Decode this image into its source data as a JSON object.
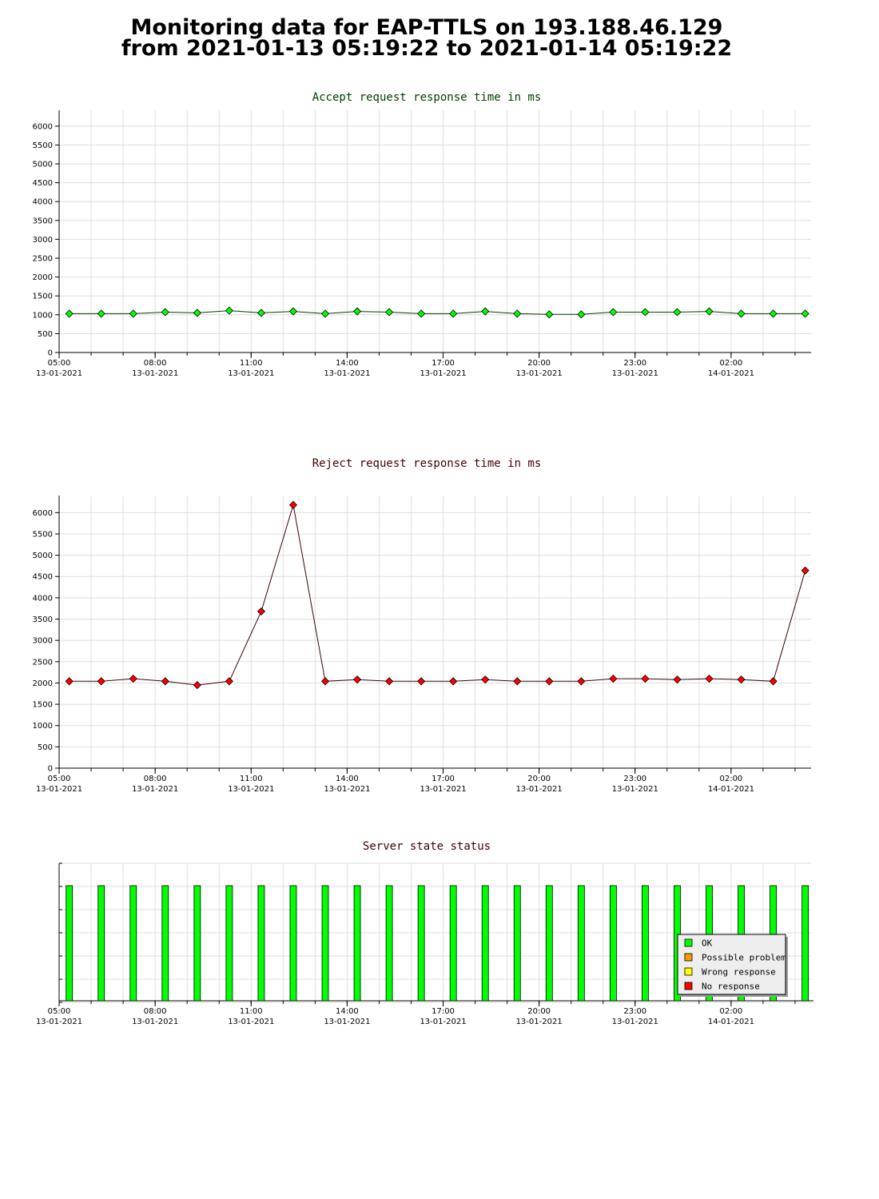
{
  "header": {
    "line1": "Monitoring data for EAP-TTLS on 193.188.46.129",
    "line2": "from 2021-01-13 05:19:22 to 2021-01-14 05:19:22"
  },
  "colors": {
    "accept_title": "#004000",
    "reject_title": "#400000",
    "status_title": "#400000",
    "accept_marker": "#00ff00",
    "reject_marker": "#ff0000",
    "grid": "#dddddd",
    "ok": "#00ff00",
    "possible_problem": "#ff9900",
    "wrong_response": "#ffff00",
    "no_response": "#ff0000"
  },
  "x_ticks": [
    {
      "time": "05:00",
      "date": "13-01-2021"
    },
    {
      "time": "08:00",
      "date": "13-01-2021"
    },
    {
      "time": "11:00",
      "date": "13-01-2021"
    },
    {
      "time": "14:00",
      "date": "13-01-2021"
    },
    {
      "time": "17:00",
      "date": "13-01-2021"
    },
    {
      "time": "20:00",
      "date": "13-01-2021"
    },
    {
      "time": "23:00",
      "date": "13-01-2021"
    },
    {
      "time": "02:00",
      "date": "14-01-2021"
    }
  ],
  "chart_data": [
    {
      "type": "line",
      "title": "Accept request response time in ms",
      "ylim": [
        0,
        6250
      ],
      "yticks": [
        0,
        500,
        1000,
        1500,
        2000,
        2500,
        3000,
        3500,
        4000,
        4500,
        5000,
        5500,
        6000
      ],
      "x_range": [
        "2021-01-13 05:00",
        "2021-01-14 04:30"
      ],
      "grid": true,
      "x": [
        "05:19",
        "06:19",
        "07:19",
        "08:19",
        "09:19",
        "10:19",
        "11:19",
        "12:19",
        "13:19",
        "14:19",
        "15:19",
        "16:19",
        "17:19",
        "18:19",
        "19:19",
        "20:19",
        "21:19",
        "22:19",
        "23:19",
        "00:19",
        "01:19",
        "02:19",
        "03:19",
        "04:19"
      ],
      "values": [
        1030,
        1030,
        1030,
        1070,
        1050,
        1110,
        1050,
        1090,
        1030,
        1090,
        1070,
        1030,
        1030,
        1090,
        1030,
        1010,
        1010,
        1070,
        1070,
        1070,
        1090,
        1030,
        1030,
        1030
      ]
    },
    {
      "type": "line",
      "title": "Reject request response time in ms",
      "ylim": [
        0,
        6250
      ],
      "yticks": [
        0,
        500,
        1000,
        1500,
        2000,
        2500,
        3000,
        3500,
        4000,
        4500,
        5000,
        5500,
        6000
      ],
      "x_range": [
        "2021-01-13 05:00",
        "2021-01-14 04:30"
      ],
      "grid": true,
      "x": [
        "05:19",
        "06:19",
        "07:19",
        "08:19",
        "09:19",
        "10:19",
        "11:19",
        "12:19",
        "13:19",
        "14:19",
        "15:19",
        "16:19",
        "17:19",
        "18:19",
        "19:19",
        "20:19",
        "21:19",
        "22:19",
        "23:19",
        "00:19",
        "01:19",
        "02:19",
        "03:19",
        "04:19"
      ],
      "values": [
        2040,
        2040,
        2100,
        2040,
        1950,
        2040,
        3680,
        6180,
        2040,
        2080,
        2040,
        2040,
        2040,
        2080,
        2040,
        2040,
        2040,
        2100,
        2100,
        2080,
        2100,
        2080,
        2040,
        4640
      ]
    },
    {
      "type": "bar",
      "title": "Server state status",
      "x_range": [
        "2021-01-13 05:00",
        "2021-01-14 04:30"
      ],
      "grid": true,
      "legend_position": "bottom-right",
      "legend": [
        "OK",
        "Possible problem",
        "Wrong response",
        "No response"
      ],
      "x": [
        "05:19",
        "06:19",
        "07:19",
        "08:19",
        "09:19",
        "10:19",
        "11:19",
        "12:19",
        "13:19",
        "14:19",
        "15:19",
        "16:19",
        "17:19",
        "18:19",
        "19:19",
        "20:19",
        "21:19",
        "22:19",
        "23:19",
        "00:19",
        "01:19",
        "02:19",
        "03:19",
        "04:19"
      ],
      "status": [
        "OK",
        "OK",
        "OK",
        "OK",
        "OK",
        "OK",
        "OK",
        "OK",
        "OK",
        "OK",
        "OK",
        "OK",
        "OK",
        "OK",
        "OK",
        "OK",
        "OK",
        "OK",
        "OK",
        "OK",
        "OK",
        "OK",
        "OK",
        "OK"
      ]
    }
  ]
}
